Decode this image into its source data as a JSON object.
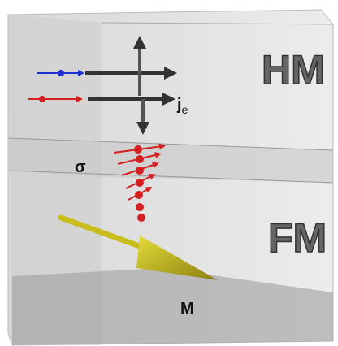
{
  "labels": {
    "top_layer": "HM",
    "bottom_layer": "FM",
    "current": "j",
    "current_sub": "e",
    "spin": "σ",
    "magnetization": "M"
  }
}
